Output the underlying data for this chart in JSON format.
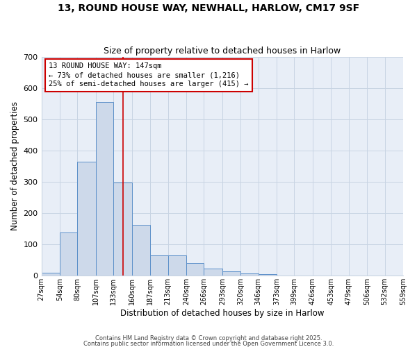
{
  "title1": "13, ROUND HOUSE WAY, NEWHALL, HARLOW, CM17 9SF",
  "title2": "Size of property relative to detached houses in Harlow",
  "xlabel": "Distribution of detached houses by size in Harlow",
  "ylabel": "Number of detached properties",
  "bin_labels": [
    "27sqm",
    "54sqm",
    "80sqm",
    "107sqm",
    "133sqm",
    "160sqm",
    "187sqm",
    "213sqm",
    "240sqm",
    "266sqm",
    "293sqm",
    "320sqm",
    "346sqm",
    "373sqm",
    "399sqm",
    "426sqm",
    "453sqm",
    "479sqm",
    "506sqm",
    "532sqm",
    "559sqm"
  ],
  "bin_edges": [
    27,
    54,
    80,
    107,
    133,
    160,
    187,
    213,
    240,
    266,
    293,
    320,
    346,
    373,
    399,
    426,
    453,
    479,
    506,
    532,
    559
  ],
  "bar_heights": [
    8,
    138,
    365,
    555,
    298,
    162,
    65,
    65,
    40,
    22,
    12,
    7,
    4,
    0,
    0,
    0,
    0,
    0,
    0,
    0
  ],
  "bar_color": "#cdd9ea",
  "bar_edge_color": "#5b8fc9",
  "grid_color": "#c8d4e3",
  "bg_color": "#ffffff",
  "axes_bg_color": "#e8eef7",
  "vline_x": 147,
  "vline_color": "#cc0000",
  "annotation_text": "13 ROUND HOUSE WAY: 147sqm\n← 73% of detached houses are smaller (1,216)\n25% of semi-detached houses are larger (415) →",
  "annotation_box_color": "#cc0000",
  "ylim": [
    0,
    700
  ],
  "yticks": [
    0,
    100,
    200,
    300,
    400,
    500,
    600,
    700
  ],
  "footer_text1": "Contains HM Land Registry data © Crown copyright and database right 2025.",
  "footer_text2": "Contains public sector information licensed under the Open Government Licence 3.0."
}
